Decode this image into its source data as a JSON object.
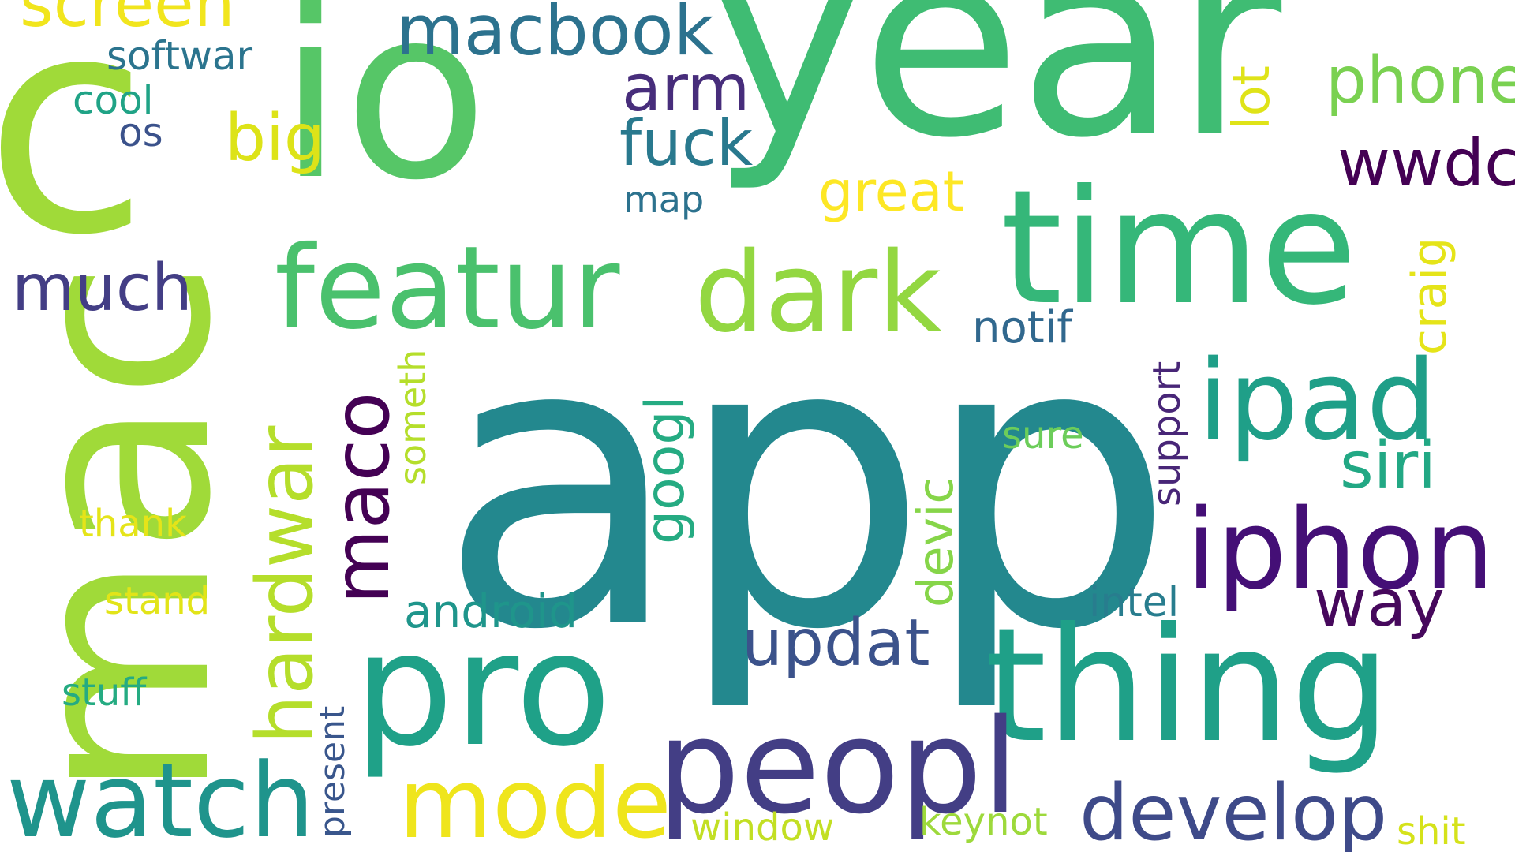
{
  "words": [
    {
      "id": "app",
      "text": "app",
      "color": "#23888e"
    },
    {
      "id": "mac",
      "text": "mac",
      "color": "#a0da39"
    },
    {
      "id": "year",
      "text": "year",
      "color": "#3fbc73"
    },
    {
      "id": "io",
      "text": "io",
      "color": "#56c667"
    },
    {
      "id": "c",
      "text": "c",
      "color": "#a0da39"
    },
    {
      "id": "time",
      "text": "time",
      "color": "#35b779"
    },
    {
      "id": "thing",
      "text": "thing",
      "color": "#1fa088"
    },
    {
      "id": "pro",
      "text": "pro",
      "color": "#1fa188"
    },
    {
      "id": "featur",
      "text": "featur",
      "color": "#4ac16d"
    },
    {
      "id": "peopl",
      "text": "peopl",
      "color": "#433e85"
    },
    {
      "id": "dark",
      "text": "dark",
      "color": "#93d741"
    },
    {
      "id": "ipad",
      "text": "ipad",
      "color": "#1f9f88"
    },
    {
      "id": "iphon",
      "text": "iphon",
      "color": "#440f76"
    },
    {
      "id": "watch",
      "text": "watch",
      "color": "#1f948c"
    },
    {
      "id": "mode",
      "text": "mode",
      "color": "#efe51c"
    },
    {
      "id": "hardwar",
      "text": "hardwar",
      "color": "#b5de2b"
    },
    {
      "id": "maco",
      "text": "maco",
      "color": "#440154"
    },
    {
      "id": "develop",
      "text": "develop",
      "color": "#3e4a89"
    },
    {
      "id": "macbook",
      "text": "macbook",
      "color": "#2c728e"
    },
    {
      "id": "screen",
      "text": "screen",
      "color": "#f1e51d"
    },
    {
      "id": "phone",
      "text": "phone",
      "color": "#7ad151"
    },
    {
      "id": "wwdc",
      "text": "wwdc",
      "color": "#440154"
    },
    {
      "id": "arm",
      "text": "arm",
      "color": "#472d7b"
    },
    {
      "id": "fuck",
      "text": "fuck",
      "color": "#29798e"
    },
    {
      "id": "big",
      "text": "big",
      "color": "#dde318"
    },
    {
      "id": "updat",
      "text": "updat",
      "color": "#3b528b"
    },
    {
      "id": "way",
      "text": "way",
      "color": "#46085c"
    },
    {
      "id": "much",
      "text": "much",
      "color": "#433e85"
    },
    {
      "id": "siri",
      "text": "siri",
      "color": "#22a884"
    },
    {
      "id": "great",
      "text": "great",
      "color": "#fde725"
    },
    {
      "id": "lot",
      "text": "lot",
      "color": "#dfe318"
    },
    {
      "id": "craig",
      "text": "craig",
      "color": "#e5e419"
    },
    {
      "id": "googl",
      "text": "googl",
      "color": "#25ab82"
    },
    {
      "id": "devic",
      "text": "devic",
      "color": "#86d549"
    },
    {
      "id": "android",
      "text": "android",
      "color": "#1f958b"
    },
    {
      "id": "notif",
      "text": "notif",
      "color": "#31688e"
    },
    {
      "id": "intel",
      "text": "intel",
      "color": "#287d8e"
    },
    {
      "id": "softwar",
      "text": "softwar",
      "color": "#2b748e"
    },
    {
      "id": "cool",
      "text": "cool",
      "color": "#20a386"
    },
    {
      "id": "os",
      "text": "os",
      "color": "#3b528b"
    },
    {
      "id": "map",
      "text": "map",
      "color": "#2c728e"
    },
    {
      "id": "someth",
      "text": "someth",
      "color": "#b5de2b"
    },
    {
      "id": "support",
      "text": "support",
      "color": "#482677"
    },
    {
      "id": "sure",
      "text": "sure",
      "color": "#6ccd5a"
    },
    {
      "id": "thank",
      "text": "thank",
      "color": "#e5e419"
    },
    {
      "id": "stand",
      "text": "stand",
      "color": "#e2e418"
    },
    {
      "id": "stuff",
      "text": "stuff",
      "color": "#25ab82"
    },
    {
      "id": "present",
      "text": "present",
      "color": "#39568c"
    },
    {
      "id": "window",
      "text": "window",
      "color": "#c2df23"
    },
    {
      "id": "keynot",
      "text": "keynot",
      "color": "#9dd93b"
    },
    {
      "id": "shit",
      "text": "shit",
      "color": "#d5e21a"
    }
  ]
}
